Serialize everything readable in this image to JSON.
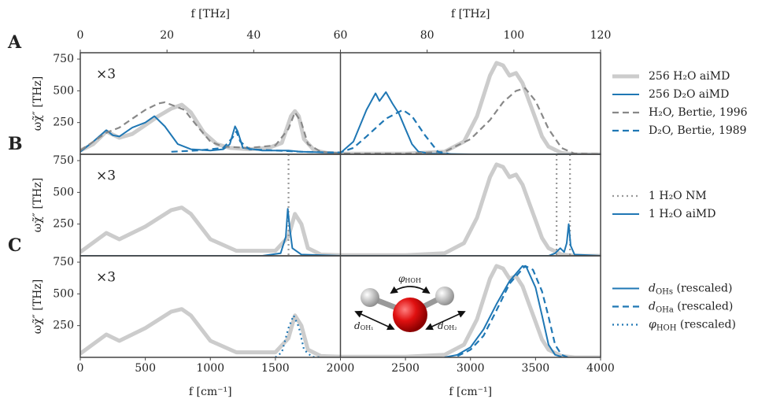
{
  "chart_data": [
    {
      "type": "line",
      "panel_label": "A",
      "scale_note": "×3",
      "ylabel": "ωχ̃″ [THz]",
      "xlim": [
        0,
        4000
      ],
      "ylim": [
        0,
        800
      ],
      "yticks": [
        250,
        500,
        750
      ],
      "x2label": "f [THz]",
      "x2lim": [
        0,
        120
      ],
      "x2ticks": [
        0,
        20,
        40,
        60,
        80,
        100,
        120
      ],
      "series": [
        {
          "name": "256 H₂O aiMD",
          "color": "#cccccc",
          "style": "thick",
          "x": [
            0,
            100,
            200,
            300,
            400,
            500,
            600,
            700,
            780,
            850,
            950,
            1050,
            1150,
            1300,
            1450,
            1550,
            1620,
            1650,
            1680,
            1720,
            1800,
            1900,
            2000,
            2500,
            2800,
            2950,
            3050,
            3150,
            3200,
            3250,
            3300,
            3350,
            3400,
            3450,
            3500,
            3550,
            3600,
            3700,
            3800,
            4000
          ],
          "values": [
            30,
            80,
            180,
            130,
            160,
            230,
            300,
            360,
            390,
            330,
            170,
            80,
            50,
            40,
            50,
            90,
            300,
            340,
            300,
            120,
            30,
            10,
            5,
            5,
            20,
            100,
            300,
            620,
            720,
            700,
            620,
            640,
            560,
            420,
            280,
            140,
            60,
            10,
            0,
            0
          ]
        },
        {
          "name": "256 D₂O aiMD",
          "color": "#1f77b4",
          "style": "solid",
          "x": [
            0,
            100,
            200,
            250,
            300,
            400,
            500,
            570,
            650,
            750,
            850,
            1000,
            1100,
            1150,
            1190,
            1210,
            1250,
            1400,
            1600,
            1700,
            2000,
            2100,
            2200,
            2270,
            2300,
            2350,
            2400,
            2450,
            2500,
            2550,
            2600,
            2700,
            3000,
            4000
          ],
          "values": [
            20,
            100,
            190,
            150,
            140,
            210,
            250,
            300,
            220,
            80,
            40,
            30,
            40,
            80,
            220,
            180,
            50,
            30,
            30,
            20,
            10,
            100,
            350,
            480,
            420,
            490,
            400,
            320,
            200,
            80,
            20,
            5,
            0,
            0
          ]
        },
        {
          "name": "H₂O, Bertie, 1996",
          "color": "#888888",
          "style": "dashed",
          "x": [
            0,
            200,
            300,
            400,
            500,
            600,
            650,
            700,
            800,
            900,
            1000,
            1100,
            1300,
            1500,
            1600,
            1650,
            1700,
            1750,
            1850,
            2000,
            2500,
            2800,
            3000,
            3150,
            3250,
            3350,
            3420,
            3500,
            3600,
            3700,
            3800,
            4000
          ],
          "values": [
            30,
            170,
            210,
            280,
            350,
            400,
            410,
            390,
            350,
            220,
            100,
            60,
            50,
            70,
            200,
            330,
            250,
            80,
            20,
            5,
            5,
            20,
            120,
            270,
            410,
            500,
            520,
            420,
            200,
            50,
            5,
            0
          ]
        },
        {
          "name": "D₂O, Bertie, 1989",
          "color": "#1f77b4",
          "style": "dashed",
          "x": [
            700,
            900,
            1100,
            1170,
            1200,
            1230,
            1300,
            1500,
            1700,
            1900,
            2000,
            2100,
            2200,
            2350,
            2480,
            2550,
            2650,
            2750,
            2850
          ],
          "values": [
            20,
            30,
            50,
            130,
            180,
            100,
            40,
            30,
            20,
            15,
            15,
            50,
            140,
            280,
            350,
            300,
            150,
            20,
            0
          ]
        }
      ]
    },
    {
      "type": "line",
      "panel_label": "B",
      "scale_note": "×3",
      "ylabel": "ωχ̃″ [THz]",
      "xlim": [
        0,
        4000
      ],
      "ylim": [
        0,
        800
      ],
      "yticks": [
        250,
        500,
        750
      ],
      "series": [
        {
          "color": "#cccccc",
          "style": "thick",
          "x": [
            0,
            200,
            300,
            500,
            700,
            780,
            850,
            1000,
            1200,
            1500,
            1600,
            1650,
            1700,
            1750,
            1850,
            2000,
            2500,
            2800,
            2950,
            3050,
            3150,
            3200,
            3250,
            3300,
            3350,
            3400,
            3450,
            3500,
            3550,
            3600,
            3700,
            3800,
            4000
          ],
          "values": [
            30,
            180,
            130,
            230,
            360,
            380,
            330,
            130,
            40,
            40,
            150,
            330,
            250,
            60,
            10,
            5,
            5,
            20,
            100,
            300,
            620,
            720,
            700,
            620,
            640,
            560,
            420,
            280,
            140,
            60,
            10,
            0,
            0
          ]
        },
        {
          "name": "1 H₂O NM",
          "color": "#999999",
          "style": "dotted",
          "x": [
            1601,
            3662,
            3765
          ]
        },
        {
          "name": "1 H₂O aiMD",
          "color": "#1f77b4",
          "style": "solid",
          "x": [
            0,
            1400,
            1540,
            1580,
            1595,
            1610,
            1630,
            1700,
            2000,
            3600,
            3650,
            3690,
            3720,
            3740,
            3755,
            3770,
            3800,
            4000
          ],
          "values": [
            0,
            0,
            20,
            150,
            370,
            220,
            60,
            10,
            0,
            0,
            20,
            60,
            30,
            100,
            250,
            80,
            10,
            0
          ]
        }
      ]
    },
    {
      "type": "line",
      "panel_label": "C",
      "scale_note": "×3",
      "ylabel": "ωχ̃″ [THz]",
      "xlim": [
        0,
        4000
      ],
      "ylim": [
        0,
        800
      ],
      "yticks": [
        250,
        500,
        750
      ],
      "xlabel": "f [cm⁻¹]",
      "xticks": [
        0,
        500,
        1000,
        1500,
        2000,
        2500,
        3000,
        3500,
        4000
      ],
      "annotations": [
        [
          "φ",
          "HOH"
        ],
        [
          "d",
          "OH₁"
        ],
        [
          "d",
          "OH₂"
        ]
      ],
      "series": [
        {
          "color": "#cccccc",
          "style": "thick",
          "x": [
            0,
            200,
            300,
            500,
            700,
            780,
            850,
            1000,
            1200,
            1500,
            1600,
            1650,
            1700,
            1750,
            1850,
            2000,
            2500,
            2800,
            2950,
            3050,
            3150,
            3200,
            3250,
            3300,
            3350,
            3400,
            3450,
            3500,
            3550,
            3600,
            3700,
            3800,
            4000
          ],
          "values": [
            30,
            180,
            130,
            230,
            360,
            380,
            330,
            130,
            40,
            40,
            150,
            330,
            250,
            60,
            10,
            5,
            5,
            20,
            100,
            300,
            620,
            720,
            700,
            620,
            640,
            560,
            420,
            280,
            140,
            60,
            10,
            0,
            0
          ]
        },
        {
          "name": [
            "d",
            "OHs",
            " (rescaled)"
          ],
          "color": "#1f77b4",
          "style": "solid",
          "x": [
            2800,
            2900,
            3000,
            3100,
            3200,
            3300,
            3400,
            3430,
            3500,
            3550,
            3600,
            3650,
            3700
          ],
          "values": [
            0,
            20,
            80,
            220,
            420,
            600,
            720,
            710,
            550,
            330,
            100,
            20,
            5
          ]
        },
        {
          "name": [
            "d",
            "OHa",
            " (rescaled)"
          ],
          "color": "#1f77b4",
          "style": "dashed",
          "x": [
            2900,
            3000,
            3100,
            3200,
            3300,
            3420,
            3480,
            3550,
            3600,
            3650,
            3700,
            3750
          ],
          "values": [
            10,
            60,
            170,
            370,
            580,
            720,
            690,
            520,
            320,
            100,
            20,
            0
          ]
        },
        {
          "name": [
            "φ",
            "HOH",
            " (rescaled)"
          ],
          "color": "#1f77b4",
          "style": "dotted",
          "x": [
            1500,
            1550,
            1600,
            1640,
            1680,
            1720,
            1780,
            1850
          ],
          "values": [
            0,
            40,
            230,
            330,
            240,
            60,
            5,
            0
          ]
        }
      ]
    }
  ]
}
